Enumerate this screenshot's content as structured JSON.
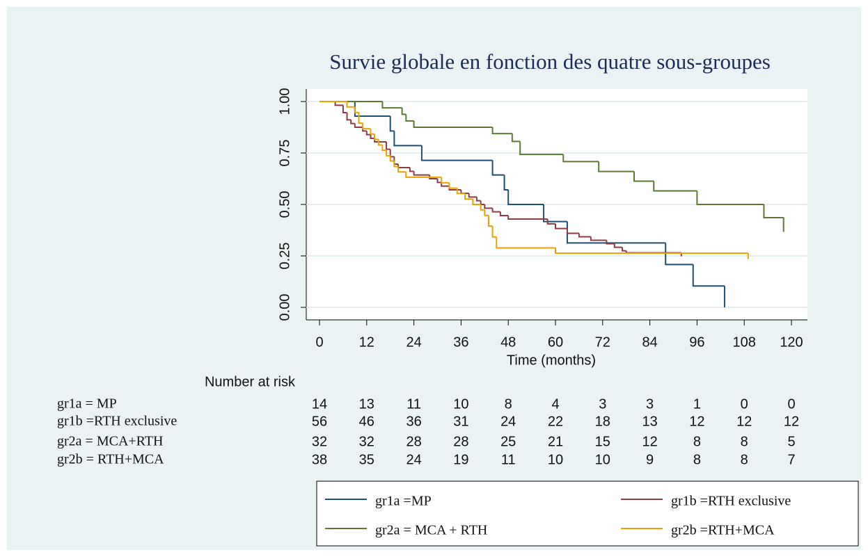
{
  "chart_data": {
    "type": "step",
    "title": "Survie globale en fonction des quatre sous-groupes",
    "xlabel": "Time (months)",
    "xlim": [
      0,
      120
    ],
    "xticks": [
      0,
      12,
      24,
      36,
      48,
      60,
      72,
      84,
      96,
      108,
      120
    ],
    "ylim": [
      0,
      1
    ],
    "yticks": [
      {
        "value": 0,
        "label": "0.00"
      },
      {
        "value": 0.25,
        "label": "0.25"
      },
      {
        "value": 0.5,
        "label": "0.50"
      },
      {
        "value": 0.75,
        "label": "0.75"
      },
      {
        "value": 1,
        "label": "1.00"
      }
    ],
    "grid": true,
    "series": [
      {
        "name": "gr1a =MP",
        "color": "#1d4f74",
        "x": [
          0,
          9,
          18,
          19,
          26,
          44,
          47,
          48,
          57,
          63,
          88,
          95,
          103
        ],
        "values": [
          1,
          0.929,
          0.857,
          0.786,
          0.714,
          0.643,
          0.571,
          0.5,
          0.417,
          0.313,
          0.208,
          0.104,
          0
        ]
      },
      {
        "name": "gr1b =RTH exclusive",
        "color": "#913a42",
        "x": [
          0,
          4,
          6,
          7,
          8,
          9,
          11,
          12,
          13,
          14,
          17,
          18,
          19,
          20,
          23,
          24,
          28,
          30,
          31,
          33,
          36,
          38,
          40,
          41,
          42,
          44,
          46,
          48,
          58,
          60,
          63,
          66,
          69,
          73,
          75,
          77,
          78,
          92
        ],
        "values": [
          1,
          0.982,
          0.946,
          0.911,
          0.893,
          0.875,
          0.857,
          0.839,
          0.821,
          0.804,
          0.768,
          0.732,
          0.696,
          0.679,
          0.661,
          0.643,
          0.625,
          0.607,
          0.589,
          0.571,
          0.554,
          0.536,
          0.518,
          0.5,
          0.482,
          0.464,
          0.446,
          0.429,
          0.406,
          0.383,
          0.36,
          0.343,
          0.326,
          0.309,
          0.292,
          0.275,
          0.265,
          0.248
        ]
      },
      {
        "name": "gr2a = MCA + RTH",
        "color": "#5a7a32",
        "x": [
          0,
          16,
          21,
          22,
          24,
          44,
          49,
          51,
          62,
          71,
          80,
          85,
          96,
          113,
          118
        ],
        "values": [
          1,
          0.969,
          0.938,
          0.906,
          0.875,
          0.844,
          0.806,
          0.743,
          0.708,
          0.66,
          0.613,
          0.566,
          0.5,
          0.436,
          0.367
        ]
      },
      {
        "name": "gr2b =RTH+MCA",
        "color": "#eba200",
        "x": [
          0,
          7,
          9,
          10,
          11,
          13,
          14,
          15,
          16,
          17,
          18,
          19,
          20,
          22,
          31,
          33,
          35,
          37,
          39,
          41,
          42,
          43,
          44,
          45,
          60,
          109
        ],
        "values": [
          1,
          0.974,
          0.947,
          0.895,
          0.868,
          0.842,
          0.816,
          0.789,
          0.763,
          0.737,
          0.711,
          0.684,
          0.658,
          0.632,
          0.605,
          0.579,
          0.553,
          0.526,
          0.5,
          0.474,
          0.447,
          0.395,
          0.342,
          0.289,
          0.263,
          0.235
        ]
      }
    ],
    "risk_table": {
      "title": "Number at risk",
      "rows": [
        {
          "label": "gr1a = MP",
          "values": [
            14,
            13,
            11,
            10,
            8,
            4,
            3,
            3,
            1,
            0,
            0
          ]
        },
        {
          "label": "gr1b =RTH exclusive",
          "values": [
            56,
            46,
            36,
            31,
            24,
            22,
            18,
            13,
            12,
            12,
            12
          ]
        },
        {
          "label": "gr2a = MCA+RTH",
          "values": [
            32,
            32,
            28,
            28,
            25,
            21,
            15,
            12,
            8,
            8,
            5
          ]
        },
        {
          "label": "gr2b = RTH+MCA",
          "values": [
            38,
            35,
            24,
            19,
            11,
            10,
            10,
            9,
            8,
            8,
            7
          ]
        }
      ]
    }
  }
}
